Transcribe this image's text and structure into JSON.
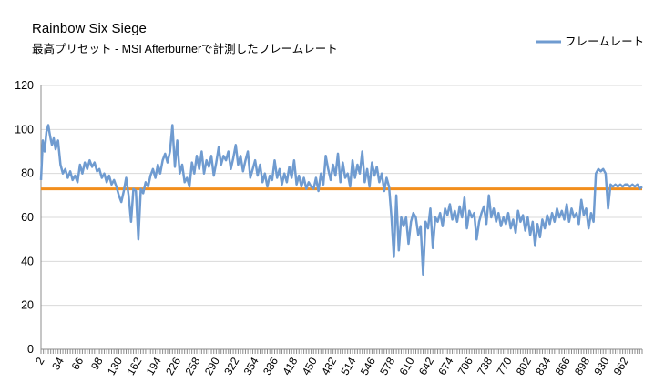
{
  "chart_data": {
    "type": "line",
    "title": "Rainbow Six Siege",
    "subtitle": "最高プリセット - MSI Afterburnerで計測したフレームレート",
    "ylim": [
      0,
      120
    ],
    "yticks": [
      0,
      20,
      40,
      60,
      80,
      100,
      120
    ],
    "xlim": [
      2,
      990
    ],
    "xticks": [
      2,
      34,
      66,
      98,
      130,
      162,
      194,
      226,
      258,
      290,
      322,
      354,
      386,
      418,
      450,
      482,
      514,
      546,
      578,
      610,
      642,
      674,
      706,
      738,
      770,
      802,
      834,
      866,
      898,
      930,
      962
    ],
    "grid": "horizontal",
    "legend": "top-right",
    "reference_line": {
      "value": 73,
      "color": "#f28e1c"
    },
    "series": [
      {
        "name": "フレームレート",
        "color": "#6f9bd0",
        "x": [
          2,
          5,
          8,
          11,
          14,
          17,
          20,
          23,
          26,
          30,
          34,
          38,
          42,
          46,
          50,
          54,
          58,
          62,
          66,
          70,
          74,
          78,
          82,
          86,
          90,
          94,
          98,
          102,
          106,
          110,
          114,
          118,
          122,
          126,
          130,
          134,
          138,
          142,
          146,
          150,
          154,
          158,
          162,
          166,
          170,
          174,
          178,
          182,
          186,
          190,
          194,
          198,
          202,
          206,
          210,
          214,
          218,
          222,
          226,
          230,
          234,
          238,
          242,
          246,
          250,
          254,
          258,
          262,
          266,
          270,
          274,
          278,
          282,
          286,
          290,
          294,
          298,
          302,
          306,
          310,
          314,
          318,
          322,
          326,
          330,
          334,
          338,
          342,
          346,
          350,
          354,
          358,
          362,
          366,
          370,
          374,
          378,
          382,
          386,
          390,
          394,
          398,
          402,
          406,
          410,
          414,
          418,
          422,
          426,
          430,
          434,
          438,
          442,
          446,
          450,
          454,
          458,
          462,
          466,
          470,
          474,
          478,
          482,
          486,
          490,
          494,
          498,
          502,
          506,
          510,
          514,
          518,
          522,
          526,
          530,
          534,
          538,
          542,
          546,
          550,
          554,
          558,
          562,
          566,
          570,
          574,
          578,
          582,
          586,
          590,
          594,
          598,
          602,
          606,
          610,
          614,
          618,
          622,
          626,
          630,
          634,
          638,
          642,
          646,
          650,
          654,
          658,
          662,
          666,
          670,
          674,
          678,
          682,
          686,
          690,
          694,
          698,
          702,
          706,
          710,
          714,
          718,
          722,
          726,
          730,
          734,
          738,
          742,
          746,
          750,
          754,
          758,
          762,
          766,
          770,
          774,
          778,
          782,
          786,
          790,
          794,
          798,
          802,
          806,
          810,
          814,
          818,
          822,
          826,
          830,
          834,
          838,
          842,
          846,
          850,
          854,
          858,
          862,
          866,
          870,
          874,
          878,
          882,
          886,
          890,
          894,
          898,
          902,
          906,
          910,
          914,
          918,
          922,
          926,
          930,
          934,
          938,
          942,
          946,
          950,
          954,
          958,
          962,
          966,
          970,
          974,
          978,
          982,
          986,
          990
        ],
        "values": [
          77,
          95,
          90,
          99,
          102,
          97,
          93,
          96,
          91,
          95,
          84,
          80,
          82,
          78,
          81,
          77,
          79,
          76,
          84,
          80,
          85,
          82,
          86,
          83,
          85,
          81,
          82,
          78,
          80,
          76,
          79,
          75,
          77,
          74,
          70,
          67,
          72,
          78,
          70,
          58,
          73,
          72,
          50,
          73,
          71,
          76,
          74,
          79,
          82,
          78,
          84,
          80,
          86,
          89,
          85,
          90,
          102,
          83,
          95,
          80,
          84,
          76,
          78,
          74,
          85,
          80,
          88,
          82,
          90,
          80,
          86,
          83,
          88,
          79,
          85,
          92,
          84,
          88,
          86,
          90,
          82,
          87,
          93,
          84,
          88,
          81,
          86,
          90,
          78,
          82,
          86,
          79,
          84,
          76,
          80,
          74,
          79,
          77,
          86,
          78,
          82,
          75,
          80,
          76,
          83,
          78,
          86,
          75,
          79,
          74,
          78,
          73,
          76,
          74,
          73,
          78,
          72,
          80,
          75,
          88,
          82,
          77,
          84,
          79,
          89,
          76,
          85,
          78,
          80,
          74,
          86,
          78,
          84,
          80,
          90,
          76,
          82,
          74,
          85,
          79,
          83,
          76,
          80,
          72,
          78,
          74,
          60,
          42,
          70,
          45,
          60,
          56,
          60,
          48,
          58,
          62,
          60,
          52,
          56,
          34,
          58,
          55,
          64,
          46,
          60,
          58,
          62,
          56,
          64,
          61,
          66,
          59,
          63,
          58,
          65,
          60,
          69,
          55,
          63,
          60,
          62,
          50,
          58,
          62,
          65,
          57,
          70,
          60,
          64,
          58,
          62,
          56,
          60,
          57,
          62,
          55,
          59,
          53,
          63,
          58,
          61,
          54,
          60,
          52,
          58,
          47,
          57,
          51,
          59,
          55,
          61,
          57,
          62,
          58,
          64,
          60,
          63,
          59,
          66,
          58,
          64,
          60,
          62,
          57,
          68,
          61,
          64,
          55,
          62,
          58,
          80,
          82,
          81,
          82,
          80,
          64,
          75,
          74,
          75,
          74,
          75,
          74,
          75,
          75,
          74,
          75,
          74,
          75,
          73,
          74
        ]
      }
    ]
  }
}
